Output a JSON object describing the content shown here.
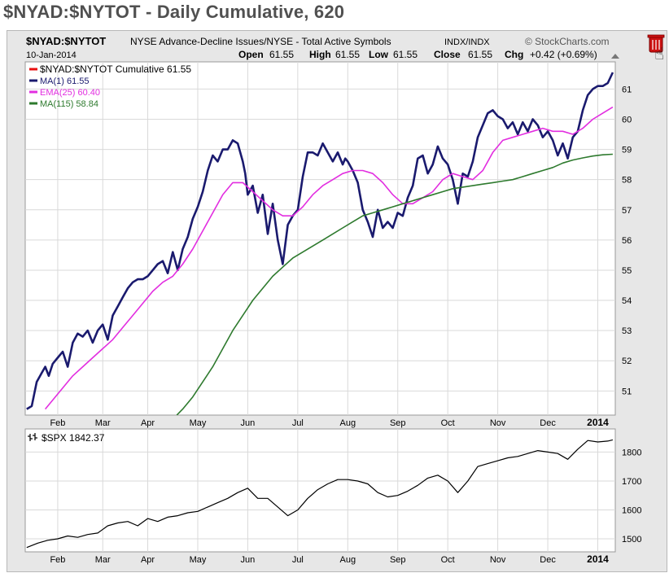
{
  "page_title": "$NYAD:$NYTOT - Daily Cumulative, 620",
  "header": {
    "symbol": "$NYAD:$NYTOT",
    "description": "NYSE Advance-Decline Issues/NYSE - Total Active Symbols",
    "exchange": "INDX/INDX",
    "credit": "© StockCharts.com",
    "date": "10-Jan-2014",
    "open_label": "Open",
    "open_value": "61.55",
    "high_label": "High",
    "high_value": "61.55",
    "low_label": "Low",
    "low_value": "61.55",
    "close_label": "Close",
    "close_value": "61.55",
    "chg_label": "Chg",
    "chg_value": "+0.42 (+0.69%)"
  },
  "colors": {
    "price": "#1a1a6e",
    "ema25": "#e22ee0",
    "ma115": "#2e7a2e",
    "legend_main": "#e81010",
    "spx": "#000000",
    "panel_bg": "#ffffff",
    "frame_bg": "#e7e7e7",
    "grid": "#d9d9d9",
    "trash": "#cc1111"
  },
  "icons": {
    "trash": "trash-icon",
    "cursor": "hand-cursor-icon",
    "up_arrow": "triangle-up-icon",
    "spx_glyph": "ohlc-bar-icon"
  },
  "legend": [
    {
      "key": "main",
      "label": "$NYAD:$NYTOT Cumulative 61.55",
      "color": "#e81010"
    },
    {
      "key": "ma1",
      "label": "MA(1) 61.55",
      "color": "#1a1a6e"
    },
    {
      "key": "ema25",
      "label": "EMA(25) 60.40",
      "color": "#e22ee0"
    },
    {
      "key": "ma115",
      "label": "MA(115) 58.84",
      "color": "#2e7a2e"
    }
  ],
  "spx_legend": "$SPX 1842.37",
  "chart_data": [
    {
      "type": "line",
      "y_axis_position": "right",
      "ylim": [
        50.2,
        61.9
      ],
      "y_ticks": [
        51,
        52,
        53,
        54,
        55,
        56,
        57,
        58,
        59,
        60,
        61
      ],
      "x_ticks": [
        "Feb",
        "Mar",
        "Apr",
        "May",
        "Jun",
        "Jul",
        "Aug",
        "Sep",
        "Oct",
        "Nov",
        "Dec",
        "2014"
      ],
      "x_tick_pos": [
        1.3,
        2.2,
        3.1,
        4.1,
        5.1,
        6.1,
        7.1,
        8.1,
        9.1,
        10.1,
        11.1,
        12.1
      ],
      "x_range": [
        0.65,
        12.45
      ],
      "grid": true,
      "series": [
        {
          "name": "MA(1)",
          "key": "price",
          "x": [
            0.68,
            0.78,
            0.88,
            0.98,
            1.05,
            1.12,
            1.2,
            1.3,
            1.4,
            1.5,
            1.6,
            1.7,
            1.8,
            1.9,
            2.0,
            2.1,
            2.2,
            2.3,
            2.4,
            2.5,
            2.6,
            2.7,
            2.8,
            2.9,
            3.0,
            3.1,
            3.2,
            3.3,
            3.4,
            3.5,
            3.6,
            3.7,
            3.8,
            3.9,
            4.0,
            4.1,
            4.2,
            4.3,
            4.4,
            4.5,
            4.6,
            4.7,
            4.8,
            4.9,
            5.0,
            5.05,
            5.1,
            5.2,
            5.3,
            5.4,
            5.5,
            5.6,
            5.7,
            5.8,
            5.9,
            6.0,
            6.1,
            6.2,
            6.3,
            6.4,
            6.5,
            6.6,
            6.7,
            6.8,
            6.9,
            7.0,
            7.05,
            7.1,
            7.2,
            7.3,
            7.4,
            7.5,
            7.6,
            7.7,
            7.8,
            7.9,
            8.0,
            8.1,
            8.2,
            8.3,
            8.4,
            8.5,
            8.6,
            8.7,
            8.8,
            8.9,
            9.0,
            9.1,
            9.2,
            9.3,
            9.4,
            9.5,
            9.6,
            9.7,
            9.8,
            9.9,
            10.0,
            10.1,
            10.2,
            10.3,
            10.4,
            10.5,
            10.6,
            10.7,
            10.8,
            10.9,
            11.0,
            11.1,
            11.2,
            11.3,
            11.4,
            11.5,
            11.6,
            11.7,
            11.8,
            11.9,
            12.0,
            12.1,
            12.2,
            12.3,
            12.4
          ],
          "values": [
            50.4,
            50.5,
            51.3,
            51.6,
            51.8,
            51.5,
            51.9,
            52.1,
            52.3,
            51.8,
            52.6,
            52.9,
            52.8,
            53.0,
            52.6,
            53.0,
            53.2,
            52.7,
            53.5,
            53.8,
            54.1,
            54.4,
            54.6,
            54.7,
            54.7,
            54.8,
            55.0,
            55.2,
            55.3,
            54.9,
            55.6,
            55.0,
            55.7,
            56.1,
            56.7,
            57.1,
            57.6,
            58.3,
            58.8,
            58.6,
            59.0,
            59.0,
            59.3,
            59.2,
            58.6,
            58.2,
            57.5,
            57.8,
            56.9,
            57.5,
            56.2,
            57.2,
            56.0,
            55.2,
            56.5,
            56.8,
            57.0,
            58.1,
            58.9,
            58.9,
            58.8,
            59.2,
            58.9,
            58.6,
            58.9,
            58.5,
            58.7,
            58.6,
            58.3,
            57.9,
            57.0,
            56.6,
            56.1,
            57.0,
            56.4,
            56.6,
            56.4,
            56.9,
            56.8,
            57.4,
            57.8,
            58.7,
            58.8,
            58.2,
            58.5,
            59.1,
            58.7,
            58.5,
            58.0,
            57.2,
            58.2,
            58.1,
            58.6,
            59.4,
            59.8,
            60.2,
            60.3,
            60.1,
            60.0,
            59.7,
            59.9,
            59.5,
            59.9,
            59.6,
            60.0,
            59.8,
            59.4,
            59.6,
            59.3,
            58.8,
            59.2,
            58.7,
            59.4,
            59.6,
            60.3,
            60.8,
            61.0,
            61.1,
            61.1,
            61.2,
            61.55
          ]
        },
        {
          "name": "EMA(25)",
          "key": "ema25",
          "x": [
            1.05,
            1.2,
            1.4,
            1.6,
            1.8,
            2.0,
            2.2,
            2.4,
            2.6,
            2.8,
            3.0,
            3.2,
            3.4,
            3.6,
            3.8,
            4.0,
            4.2,
            4.4,
            4.6,
            4.8,
            5.0,
            5.2,
            5.4,
            5.6,
            5.8,
            6.0,
            6.2,
            6.4,
            6.6,
            6.8,
            7.0,
            7.2,
            7.4,
            7.6,
            7.8,
            8.0,
            8.2,
            8.4,
            8.6,
            8.8,
            9.0,
            9.2,
            9.4,
            9.6,
            9.8,
            10.0,
            10.2,
            10.4,
            10.6,
            10.8,
            11.0,
            11.2,
            11.4,
            11.6,
            11.8,
            12.0,
            12.2,
            12.4
          ],
          "values": [
            50.4,
            50.7,
            51.1,
            51.5,
            51.8,
            52.1,
            52.4,
            52.7,
            53.1,
            53.5,
            53.9,
            54.3,
            54.6,
            54.8,
            55.2,
            55.7,
            56.3,
            56.9,
            57.5,
            57.9,
            57.9,
            57.6,
            57.3,
            57.0,
            56.8,
            56.8,
            57.1,
            57.5,
            57.8,
            58.0,
            58.2,
            58.3,
            58.3,
            58.2,
            57.9,
            57.5,
            57.2,
            57.2,
            57.4,
            57.6,
            58.0,
            58.2,
            58.1,
            58.0,
            58.3,
            58.9,
            59.3,
            59.4,
            59.5,
            59.6,
            59.7,
            59.6,
            59.6,
            59.5,
            59.7,
            60.0,
            60.2,
            60.4
          ]
        },
        {
          "name": "MA(115)",
          "key": "ma115",
          "x": [
            3.68,
            3.8,
            4.0,
            4.2,
            4.4,
            4.6,
            4.8,
            5.0,
            5.2,
            5.4,
            5.6,
            5.8,
            6.0,
            6.2,
            6.4,
            6.6,
            6.8,
            7.0,
            7.2,
            7.4,
            7.6,
            7.8,
            8.0,
            8.2,
            8.4,
            8.6,
            8.8,
            9.0,
            9.2,
            9.4,
            9.6,
            9.8,
            10.0,
            10.2,
            10.4,
            10.6,
            10.8,
            11.0,
            11.2,
            11.4,
            11.6,
            11.8,
            12.0,
            12.2,
            12.4
          ],
          "values": [
            50.2,
            50.4,
            50.8,
            51.3,
            51.8,
            52.4,
            53.0,
            53.5,
            54.0,
            54.4,
            54.8,
            55.1,
            55.4,
            55.6,
            55.8,
            56.0,
            56.2,
            56.4,
            56.6,
            56.8,
            56.9,
            57.0,
            57.1,
            57.2,
            57.3,
            57.4,
            57.5,
            57.6,
            57.7,
            57.75,
            57.8,
            57.85,
            57.9,
            57.95,
            58.0,
            58.1,
            58.2,
            58.3,
            58.4,
            58.55,
            58.65,
            58.72,
            58.78,
            58.82,
            58.84
          ]
        }
      ]
    },
    {
      "type": "line",
      "y_axis_position": "right",
      "ylim": [
        1455,
        1880
      ],
      "y_ticks": [
        1500,
        1600,
        1700,
        1800
      ],
      "x_ticks": [
        "Feb",
        "Mar",
        "Apr",
        "May",
        "Jun",
        "Jul",
        "Aug",
        "Sep",
        "Oct",
        "Nov",
        "Dec",
        "2014"
      ],
      "x_tick_pos": [
        1.3,
        2.2,
        3.1,
        4.1,
        5.1,
        6.1,
        7.1,
        8.1,
        9.1,
        10.1,
        11.1,
        12.1
      ],
      "x_range": [
        0.65,
        12.45
      ],
      "grid": true,
      "series": [
        {
          "name": "$SPX",
          "key": "spx",
          "x": [
            0.68,
            0.9,
            1.1,
            1.3,
            1.5,
            1.7,
            1.9,
            2.1,
            2.3,
            2.5,
            2.7,
            2.9,
            3.1,
            3.3,
            3.5,
            3.7,
            3.9,
            4.1,
            4.3,
            4.5,
            4.7,
            4.9,
            5.1,
            5.3,
            5.5,
            5.7,
            5.9,
            6.1,
            6.3,
            6.5,
            6.7,
            6.9,
            7.1,
            7.3,
            7.5,
            7.7,
            7.9,
            8.1,
            8.3,
            8.5,
            8.7,
            8.9,
            9.1,
            9.3,
            9.5,
            9.7,
            9.9,
            10.1,
            10.3,
            10.5,
            10.7,
            10.9,
            11.1,
            11.3,
            11.5,
            11.7,
            11.9,
            12.1,
            12.3,
            12.4
          ],
          "values": [
            1470,
            1485,
            1495,
            1500,
            1510,
            1505,
            1515,
            1520,
            1545,
            1555,
            1560,
            1545,
            1570,
            1560,
            1575,
            1580,
            1590,
            1595,
            1610,
            1625,
            1640,
            1660,
            1675,
            1640,
            1640,
            1610,
            1580,
            1600,
            1640,
            1670,
            1690,
            1705,
            1705,
            1700,
            1690,
            1660,
            1645,
            1650,
            1665,
            1685,
            1710,
            1720,
            1700,
            1660,
            1700,
            1750,
            1760,
            1770,
            1780,
            1785,
            1795,
            1805,
            1800,
            1795,
            1775,
            1810,
            1840,
            1835,
            1838,
            1842.37
          ]
        }
      ]
    }
  ]
}
